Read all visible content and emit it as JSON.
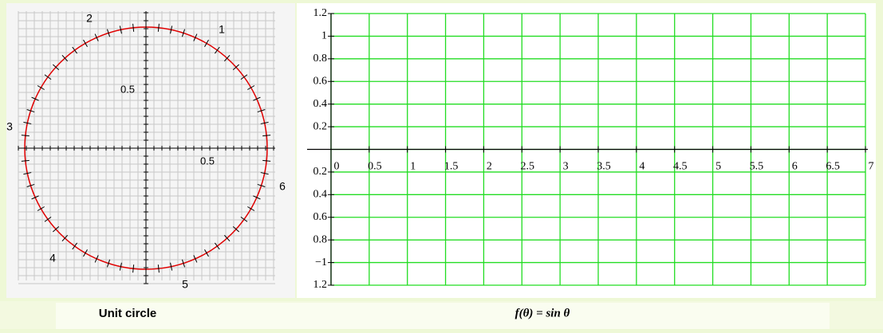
{
  "unit_circle": {
    "point_labels": [
      "1",
      "2",
      "3",
      "4",
      "5",
      "6"
    ],
    "axis_labels": [
      "0.5",
      "0.5"
    ],
    "caption": "Unit circle"
  },
  "graph": {
    "caption": "f(θ) = sin θ",
    "x_labels": [
      "0",
      "0.5",
      "1",
      "1.5",
      "2",
      "2.5",
      "3",
      "3.5",
      "4",
      "4.5",
      "5",
      "5.5",
      "6",
      "6.5",
      "7"
    ],
    "y_labels": [
      "1.2",
      "1",
      "0.8",
      "0.6",
      "0.4",
      "0.2",
      "0.2",
      "0.4",
      "0.6",
      "0.8",
      "−1",
      "1.2"
    ]
  }
}
